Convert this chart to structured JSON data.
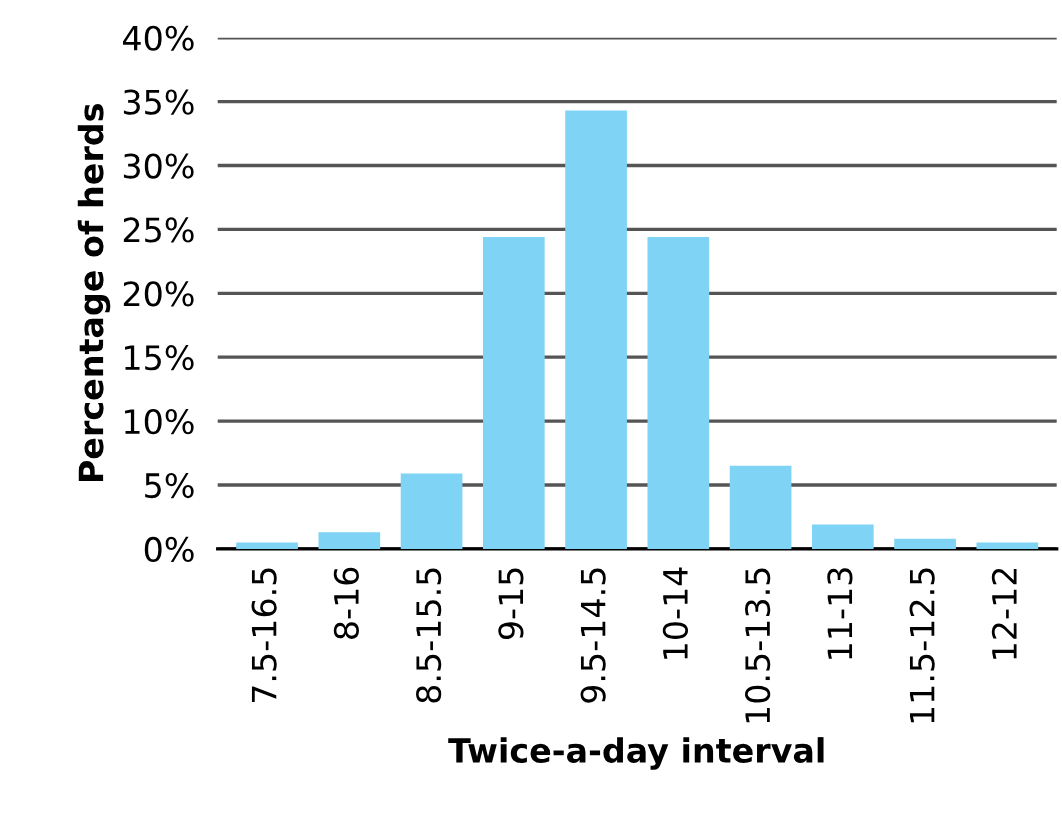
{
  "chart_data": {
    "type": "bar",
    "xlabel": "Twice-a-day interval",
    "ylabel": "Percentage of herds",
    "categories": [
      "7.5-16.5",
      "8-16",
      "8.5-15.5",
      "9-15",
      "9.5-14.5",
      "10-14",
      "10.5-13.5",
      "11-13",
      "11.5-12.5",
      "12-12"
    ],
    "values": [
      0.5,
      1.3,
      5.9,
      24.4,
      34.3,
      24.4,
      6.5,
      1.9,
      0.8,
      0.5
    ],
    "color": "#7fd3f5",
    "ylim": [
      0,
      40
    ],
    "yticks": [
      {
        "value": 0,
        "label": "0%"
      },
      {
        "value": 5,
        "label": "5%"
      },
      {
        "value": 10,
        "label": "10%"
      },
      {
        "value": 15,
        "label": "15%"
      },
      {
        "value": 20,
        "label": "20%"
      },
      {
        "value": 25,
        "label": "25%"
      },
      {
        "value": 30,
        "label": "30%"
      },
      {
        "value": 35,
        "label": "35%"
      },
      {
        "value": 40,
        "label": "40%"
      }
    ],
    "grid": "y",
    "legend": false
  }
}
